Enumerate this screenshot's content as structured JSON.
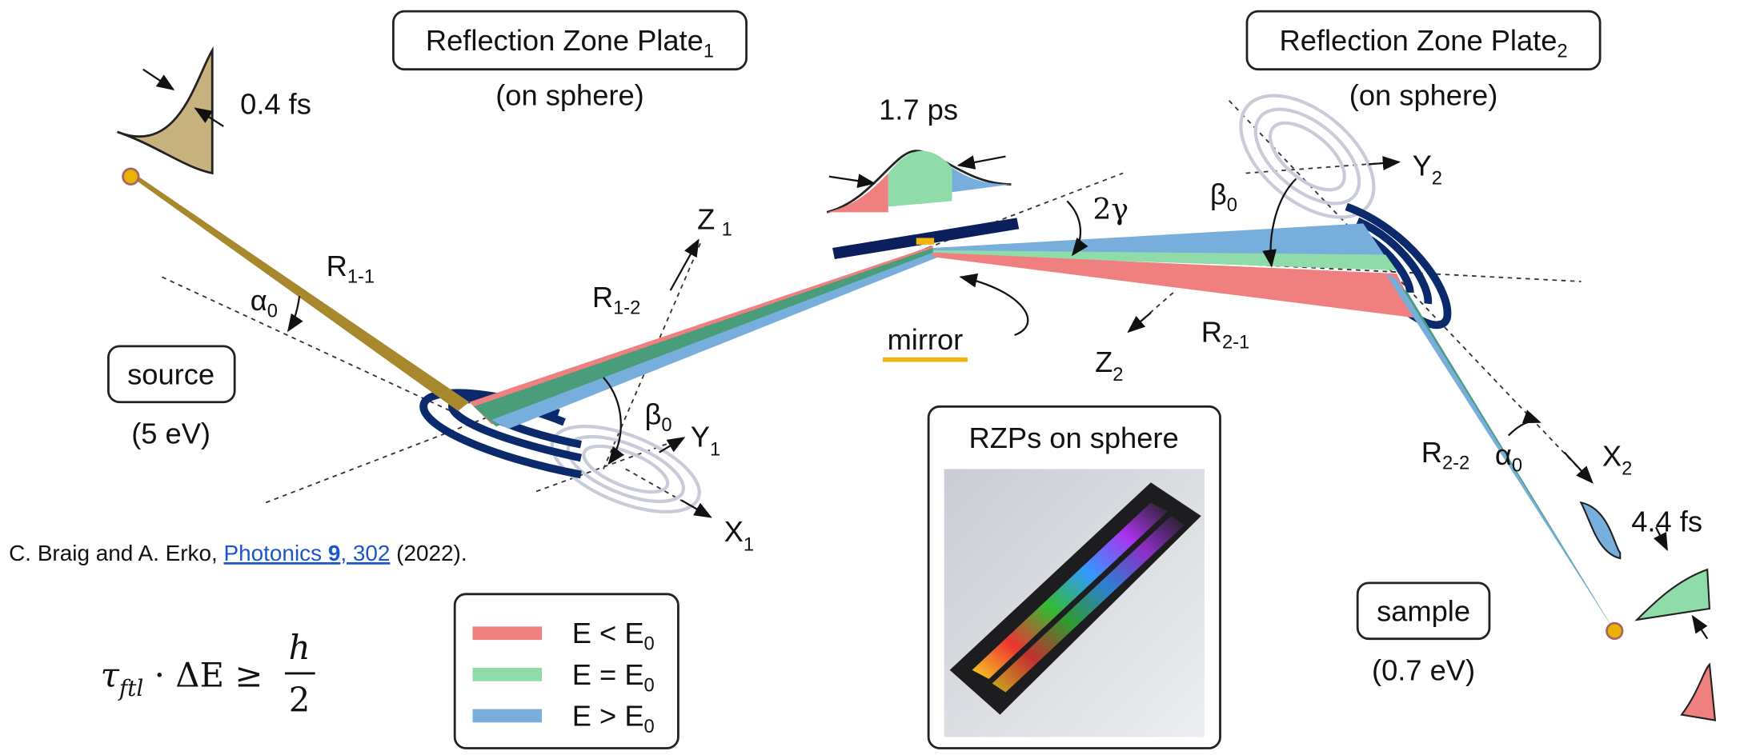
{
  "boxes": {
    "rzp1": {
      "title": "Reflection Zone Plate",
      "sub": "1",
      "note": "(on sphere)"
    },
    "rzp2": {
      "title": "Reflection Zone Plate",
      "sub": "2",
      "note": "(on sphere)"
    },
    "source": {
      "title": "source",
      "note": "(5 eV)"
    },
    "sample": {
      "title": "sample",
      "note": "(0.7 eV)"
    },
    "photo": {
      "title": "RZPs on sphere"
    }
  },
  "pulses": {
    "input": "0.4 fs",
    "stretched": "1.7 ps",
    "output": "4.4 fs"
  },
  "mirror": "mirror",
  "symbols": {
    "z1": {
      "text": "Z",
      "sub": "1"
    },
    "y1": {
      "text": "Y",
      "sub": "1"
    },
    "x1": {
      "text": "X",
      "sub": "1"
    },
    "z2": {
      "text": "Z",
      "sub": "2"
    },
    "y2": {
      "text": "Y",
      "sub": "2"
    },
    "x2": {
      "text": "X",
      "sub": "2"
    },
    "r11": {
      "text": "R",
      "sub": "1-1"
    },
    "r12": {
      "text": "R",
      "sub": "1-2"
    },
    "r21": {
      "text": "R",
      "sub": "2-1"
    },
    "r22": {
      "text": "R",
      "sub": "2-2"
    },
    "alpha1": {
      "text": "α",
      "sub": "0"
    },
    "alpha2": {
      "text": "α",
      "sub": "0"
    },
    "beta1": {
      "text": "β",
      "sub": "0"
    },
    "beta2": {
      "text": "β",
      "sub": "0"
    },
    "gamma": {
      "text": "2γ"
    }
  },
  "citation": {
    "authors": "C. Braig and A. Erko, ",
    "journal": "Photonics ",
    "volume": "9",
    "pages": ", 302",
    "year": " (2022)."
  },
  "formula": {
    "lhs": "τ",
    "lhs_sub": "ftl",
    "op": " · ΔE ≥ ",
    "num": "h",
    "den": "2"
  },
  "legend": [
    {
      "text": "E < E",
      "sub": "0"
    },
    {
      "text": "E = E",
      "sub": "0"
    },
    {
      "text": "E > E",
      "sub": "0"
    }
  ]
}
